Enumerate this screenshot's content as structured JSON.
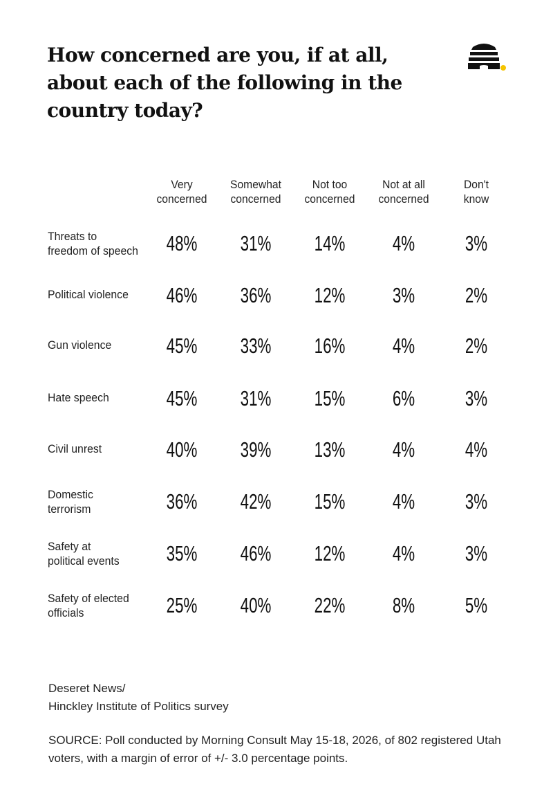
{
  "title": "How concerned are you, if at all, about each of the following in the country today?",
  "logo": {
    "icon": "beehive-icon",
    "accent_color": "#f5c400"
  },
  "chart_data": {
    "type": "table",
    "columns": [
      "Very\nconcerned",
      "Somewhat\nconcerned",
      "Not too\nconcerned",
      "Not at all\nconcerned",
      "Don't\nknow"
    ],
    "rows": [
      {
        "label": "Threats to\nfreedom of speech",
        "values": [
          "48%",
          "31%",
          "14%",
          "4%",
          "3%"
        ]
      },
      {
        "label": "Political violence",
        "values": [
          "46%",
          "36%",
          "12%",
          "3%",
          "2%"
        ]
      },
      {
        "label": "Gun violence",
        "values": [
          "45%",
          "33%",
          "16%",
          "4%",
          "2%"
        ]
      },
      {
        "label": "Hate speech",
        "values": [
          "45%",
          "31%",
          "15%",
          "6%",
          "3%"
        ]
      },
      {
        "label": "Civil unrest",
        "values": [
          "40%",
          "39%",
          "13%",
          "4%",
          "4%"
        ]
      },
      {
        "label": "Domestic\nterrorism",
        "values": [
          "36%",
          "42%",
          "15%",
          "4%",
          "3%"
        ]
      },
      {
        "label": "Safety at\npolitical events",
        "values": [
          "35%",
          "46%",
          "12%",
          "4%",
          "3%"
        ]
      },
      {
        "label": "Safety of elected\nofficials",
        "values": [
          "25%",
          "40%",
          "22%",
          "8%",
          "5%"
        ]
      }
    ]
  },
  "footer": {
    "credit": "Deseret News/\nHinckley Institute of Politics survey",
    "source": "SOURCE: Poll conducted by Morning Consult May 15-18, 2026, of 802 registered Utah voters, with a margin of error of +/- 3.0 percentage points."
  }
}
